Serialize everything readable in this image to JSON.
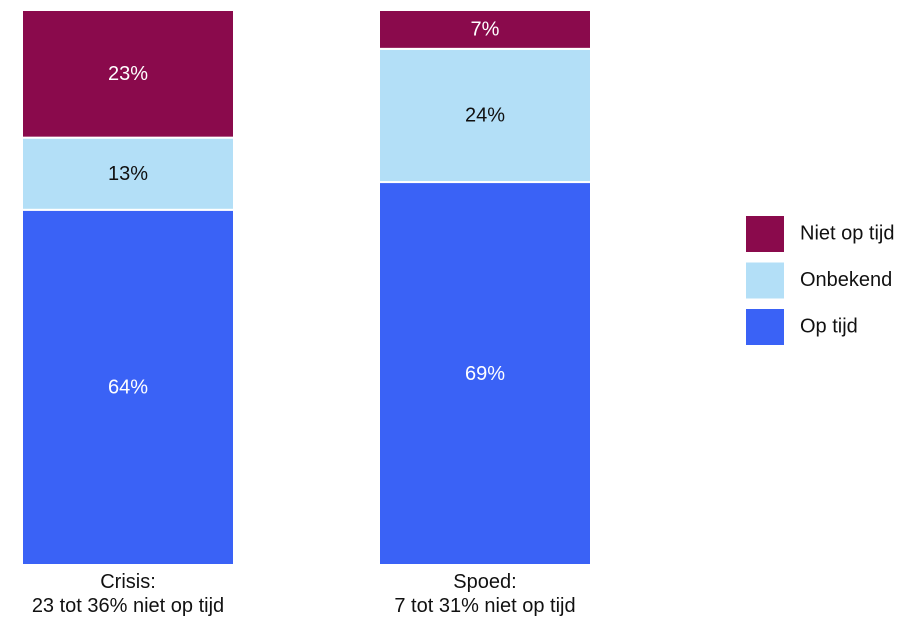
{
  "chart_data": {
    "type": "stacked_bar",
    "categories": [
      "Crisis:\n23 tot 36% niet op tijd",
      "Spoed:\n7 tot 31% niet op tijd"
    ],
    "series": [
      {
        "name": "Op tijd",
        "color": "#3a62f6",
        "values": [
          64,
          69
        ],
        "value_labels": [
          "64%",
          "69%"
        ]
      },
      {
        "name": "Onbekend",
        "color": "#b3dff7",
        "values": [
          13,
          24
        ],
        "value_labels": [
          "13%",
          "24%"
        ]
      },
      {
        "name": "Niet op tijd",
        "color": "#8a0a4c",
        "values": [
          23,
          7
        ],
        "value_labels": [
          "23%",
          "7%"
        ]
      }
    ],
    "ylim": [
      0,
      100
    ]
  }
}
